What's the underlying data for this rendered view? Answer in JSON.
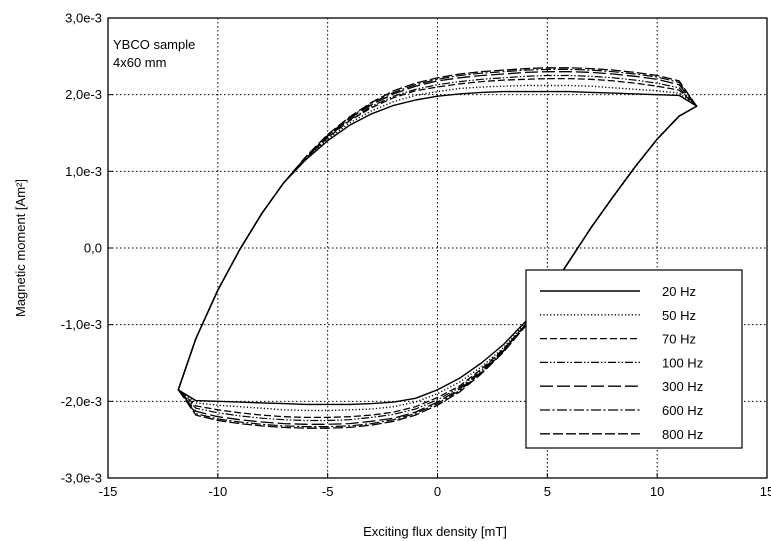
{
  "chart_data": {
    "type": "line",
    "xlabel": "Exciting flux density [mT]",
    "ylabel": "Magnetic moment [Am²]",
    "xlim": [
      -15,
      15
    ],
    "ylim": [
      -0.003,
      0.003
    ],
    "xticks": [
      -15,
      -10,
      -5,
      0,
      5,
      10,
      15
    ],
    "xtick_labels": [
      "-15",
      "-10",
      "-5",
      "0",
      "5",
      "10",
      "15"
    ],
    "yticks": [
      -0.003,
      -0.002,
      -0.001,
      0,
      0.001,
      0.002,
      0.003
    ],
    "ytick_labels": [
      "-3,0e-3",
      "-2,0e-3",
      "-1,0e-3",
      "0,0",
      "1,0e-3",
      "2,0e-3",
      "3,0e-3"
    ],
    "grid": true,
    "legend_position": "bottom-right",
    "annotations": [
      "YBCO sample",
      "4x60 mm"
    ],
    "x": [
      -11.8,
      -11,
      -10,
      -9,
      -8,
      -7,
      -6,
      -5,
      -4,
      -3,
      -2,
      -1,
      0,
      1,
      2,
      3,
      4,
      5,
      6,
      7,
      8,
      9,
      10,
      11,
      11.8
    ],
    "series": [
      {
        "name": "20 Hz",
        "dash": "solid",
        "upper": [
          -0.00185,
          -0.00118,
          -0.00055,
          -2e-05,
          0.00045,
          0.00085,
          0.00115,
          0.0014,
          0.0016,
          0.00175,
          0.00186,
          0.00193,
          0.00198,
          0.00201,
          0.00203,
          0.00204,
          0.00204,
          0.00204,
          0.00204,
          0.00203,
          0.00202,
          0.00201,
          0.002,
          0.00199,
          0.00185
        ],
        "lower": [
          -0.00185,
          -0.00199,
          -0.002,
          -0.00201,
          -0.00202,
          -0.00203,
          -0.00204,
          -0.00204,
          -0.00204,
          -0.00203,
          -0.00201,
          -0.00196,
          -0.00185,
          -0.0017,
          -0.0015,
          -0.00126,
          -0.00096,
          -0.0006,
          -0.00017,
          0.00027,
          0.00067,
          0.00106,
          0.00142,
          0.00172,
          0.00185
        ]
      },
      {
        "name": "50 Hz",
        "dash": "dotted",
        "upper": [
          -0.00185,
          -0.00118,
          -0.00055,
          -2e-05,
          0.00045,
          0.00085,
          0.00116,
          0.00142,
          0.00163,
          0.00179,
          0.00191,
          0.00199,
          0.00204,
          0.00208,
          0.0021,
          0.00211,
          0.00212,
          0.00212,
          0.00212,
          0.00211,
          0.00209,
          0.00207,
          0.00205,
          0.00202,
          0.00185
        ],
        "lower": [
          -0.00185,
          -0.00202,
          -0.00205,
          -0.00207,
          -0.00209,
          -0.00211,
          -0.00212,
          -0.00212,
          -0.00211,
          -0.0021,
          -0.00207,
          -0.00201,
          -0.0019,
          -0.00175,
          -0.00155,
          -0.0013,
          -0.00098,
          -0.0006,
          -0.00017,
          0.00027,
          0.00067,
          0.00106,
          0.00142,
          0.00172,
          0.00185
        ]
      },
      {
        "name": "70 Hz",
        "dash": "dashed",
        "upper": [
          -0.00185,
          -0.00118,
          -0.00055,
          -2e-05,
          0.00045,
          0.00085,
          0.00117,
          0.00144,
          0.00166,
          0.00183,
          0.00196,
          0.00205,
          0.0021,
          0.00214,
          0.00217,
          0.00219,
          0.0022,
          0.00221,
          0.00221,
          0.0022,
          0.00218,
          0.00215,
          0.00211,
          0.00206,
          0.00185
        ],
        "lower": [
          -0.00185,
          -0.00206,
          -0.00211,
          -0.00215,
          -0.00218,
          -0.0022,
          -0.00221,
          -0.00221,
          -0.0022,
          -0.00218,
          -0.00214,
          -0.00207,
          -0.00195,
          -0.0018,
          -0.00158,
          -0.00132,
          -0.001,
          -0.0006,
          -0.00017,
          0.00027,
          0.00067,
          0.00106,
          0.00142,
          0.00172,
          0.00185
        ]
      },
      {
        "name": "100 Hz",
        "dash": "dashdotdot",
        "upper": [
          -0.00185,
          -0.00118,
          -0.00055,
          -2e-05,
          0.00045,
          0.00085,
          0.00117,
          0.00145,
          0.00167,
          0.00185,
          0.00198,
          0.00207,
          0.00213,
          0.00217,
          0.0022,
          0.00222,
          0.00224,
          0.00225,
          0.00225,
          0.00224,
          0.00222,
          0.00219,
          0.00215,
          0.00209,
          0.00185
        ],
        "lower": [
          -0.00185,
          -0.00209,
          -0.00215,
          -0.00219,
          -0.00222,
          -0.00224,
          -0.00225,
          -0.00225,
          -0.00224,
          -0.00221,
          -0.00217,
          -0.0021,
          -0.00198,
          -0.00182,
          -0.0016,
          -0.00133,
          -0.001,
          -0.0006,
          -0.00017,
          0.00027,
          0.00067,
          0.00106,
          0.00142,
          0.00172,
          0.00185
        ]
      },
      {
        "name": "300 Hz",
        "dash": "longdash",
        "upper": [
          -0.00185,
          -0.00118,
          -0.00055,
          -2e-05,
          0.00045,
          0.00085,
          0.00118,
          0.00146,
          0.00169,
          0.00187,
          0.00201,
          0.00211,
          0.00218,
          0.00222,
          0.00225,
          0.00227,
          0.00229,
          0.0023,
          0.0023,
          0.00229,
          0.00227,
          0.00224,
          0.0022,
          0.00213,
          0.00185
        ],
        "lower": [
          -0.00185,
          -0.00213,
          -0.0022,
          -0.00224,
          -0.00227,
          -0.00229,
          -0.0023,
          -0.0023,
          -0.00229,
          -0.00226,
          -0.00222,
          -0.00214,
          -0.00201,
          -0.00184,
          -0.00162,
          -0.00134,
          -0.00101,
          -0.0006,
          -0.00017,
          0.00027,
          0.00067,
          0.00106,
          0.00142,
          0.00172,
          0.00185
        ]
      },
      {
        "name": "600 Hz",
        "dash": "dashdot",
        "upper": [
          -0.00185,
          -0.00118,
          -0.00055,
          -2e-05,
          0.00045,
          0.00085,
          0.00118,
          0.00147,
          0.0017,
          0.00189,
          0.00203,
          0.00213,
          0.0022,
          0.00225,
          0.00228,
          0.0023,
          0.00232,
          0.00233,
          0.00233,
          0.00232,
          0.0023,
          0.00227,
          0.00223,
          0.00216,
          0.00185
        ],
        "lower": [
          -0.00185,
          -0.00216,
          -0.00223,
          -0.00227,
          -0.0023,
          -0.00232,
          -0.00233,
          -0.00233,
          -0.00232,
          -0.00229,
          -0.00224,
          -0.00216,
          -0.00203,
          -0.00186,
          -0.00163,
          -0.00135,
          -0.00101,
          -0.0006,
          -0.00017,
          0.00027,
          0.00067,
          0.00106,
          0.00142,
          0.00172,
          0.00185
        ]
      },
      {
        "name": "800 Hz",
        "dash": "medlongdash",
        "upper": [
          -0.00185,
          -0.00118,
          -0.00055,
          -2e-05,
          0.00045,
          0.00085,
          0.00119,
          0.00148,
          0.00171,
          0.0019,
          0.00205,
          0.00215,
          0.00222,
          0.00227,
          0.0023,
          0.00232,
          0.00234,
          0.00235,
          0.00235,
          0.00234,
          0.00232,
          0.00229,
          0.00225,
          0.00218,
          0.00185
        ],
        "lower": [
          -0.00185,
          -0.00218,
          -0.00225,
          -0.00229,
          -0.00232,
          -0.00234,
          -0.00235,
          -0.00235,
          -0.00234,
          -0.00231,
          -0.00226,
          -0.00218,
          -0.00205,
          -0.00188,
          -0.00164,
          -0.00136,
          -0.00102,
          -0.0006,
          -0.00017,
          0.00027,
          0.00067,
          0.00106,
          0.00142,
          0.00172,
          0.00185
        ]
      }
    ]
  }
}
